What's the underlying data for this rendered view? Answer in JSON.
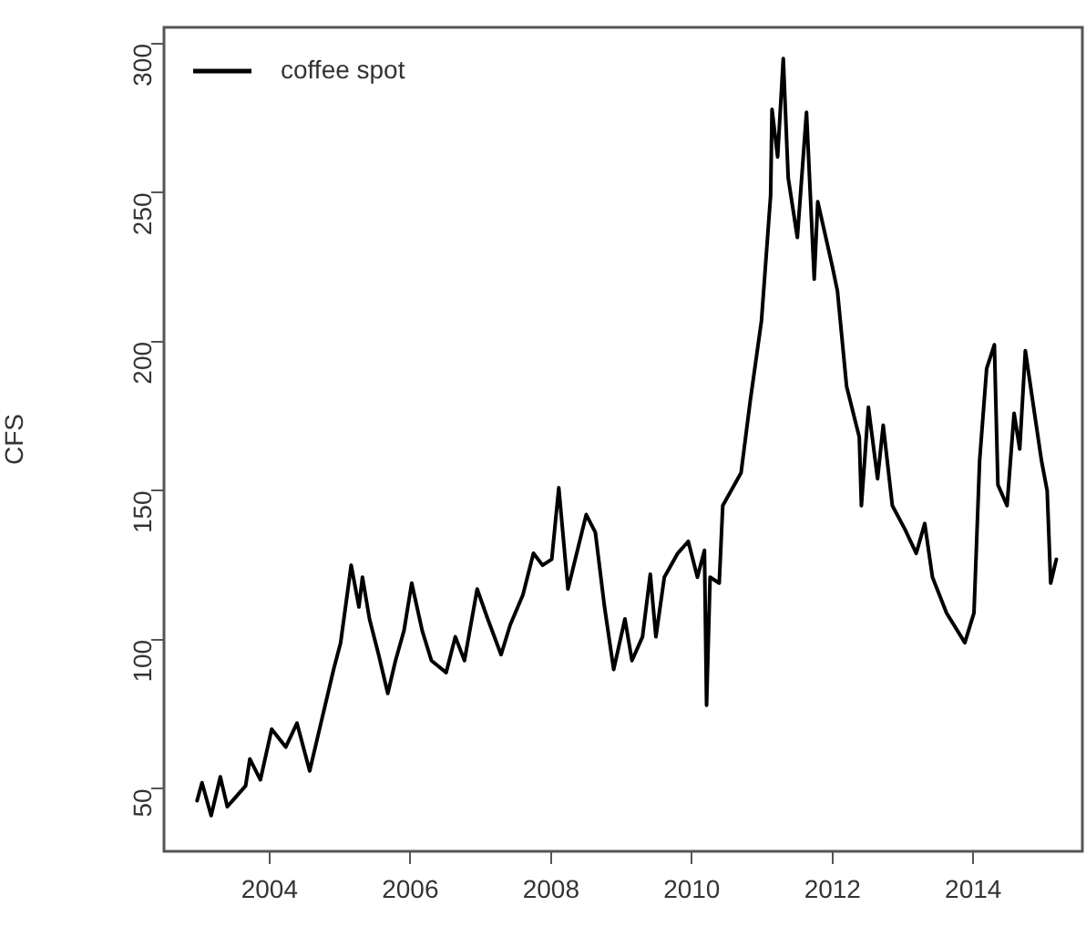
{
  "chart_data": {
    "type": "line",
    "ylabel": "CFS",
    "legend": "top left",
    "xlim": [
      2002.5,
      2015.55
    ],
    "ylim": [
      29,
      305.5
    ],
    "xticks": [
      2004,
      2006,
      2008,
      2010,
      2012,
      2014
    ],
    "yticks": [
      50,
      100,
      150,
      200,
      250,
      300
    ],
    "x": [
      2002.97,
      2003.04,
      2003.17,
      2003.3,
      2003.4,
      2003.66,
      2003.72,
      2003.87,
      2004.03,
      2004.23,
      2004.39,
      2004.57,
      2004.75,
      2004.91,
      2005.01,
      2005.16,
      2005.27,
      2005.32,
      2005.42,
      2005.55,
      2005.68,
      2005.79,
      2005.91,
      2006.02,
      2006.17,
      2006.3,
      2006.51,
      2006.64,
      2006.77,
      2006.95,
      2007.1,
      2007.29,
      2007.42,
      2007.6,
      2007.75,
      2007.88,
      2008.01,
      2008.11,
      2008.24,
      2008.5,
      2008.63,
      2008.76,
      2008.89,
      2009.05,
      2009.15,
      2009.3,
      2009.41,
      2009.49,
      2009.61,
      2009.8,
      2009.95,
      2010.08,
      2010.18,
      2010.21,
      2010.26,
      2010.39,
      2010.44,
      2010.7,
      2010.83,
      2010.99,
      2011.12,
      2011.14,
      2011.22,
      2011.3,
      2011.37,
      2011.5,
      2011.63,
      2011.74,
      2011.79,
      2012.0,
      2012.07,
      2012.2,
      2012.38,
      2012.41,
      2012.51,
      2012.64,
      2012.72,
      2012.85,
      2013.03,
      2013.19,
      2013.31,
      2013.42,
      2013.62,
      2013.88,
      2014.01,
      2014.09,
      2014.19,
      2014.3,
      2014.35,
      2014.48,
      2014.58,
      2014.66,
      2014.74,
      2014.87,
      2014.97,
      2015.05,
      2015.1,
      2015.18
    ],
    "series": [
      {
        "name": "coffee spot",
        "color": "#000000",
        "values": [
          46,
          52,
          41,
          54,
          44,
          51,
          60,
          53,
          70,
          64,
          72,
          56,
          74,
          90,
          99,
          125,
          111,
          121,
          107,
          95,
          82,
          93,
          103,
          119,
          103,
          93,
          89,
          101,
          93,
          117,
          107,
          95,
          105,
          115,
          129,
          125,
          127,
          151,
          117,
          142,
          136,
          111,
          90,
          107,
          93,
          101,
          122,
          101,
          121,
          129,
          133,
          121,
          130,
          78,
          121,
          119,
          145,
          156,
          180,
          207,
          249,
          278,
          262,
          295,
          255,
          235,
          277,
          221,
          247,
          225,
          217,
          185,
          168,
          145,
          178,
          154,
          172,
          145,
          137,
          129,
          139,
          121,
          109,
          99,
          109,
          160,
          191,
          199,
          152,
          145,
          176,
          164,
          197,
          176,
          160,
          150,
          119,
          127
        ]
      }
    ]
  }
}
